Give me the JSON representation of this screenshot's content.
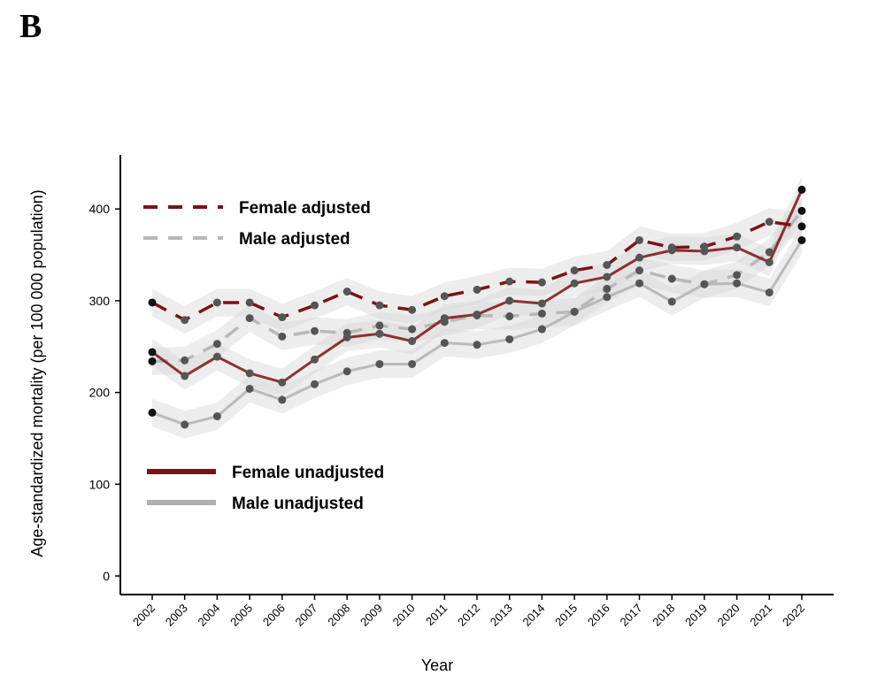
{
  "panel_label": "B",
  "chart_data": {
    "type": "line",
    "title": "",
    "xlabel": "Year",
    "ylabel": "Age-standardized mortality (per 100 000 population)",
    "x": [
      "2002",
      "2003",
      "2004",
      "2005",
      "2006",
      "2007",
      "2008",
      "2009",
      "2010",
      "2011",
      "2012",
      "2013",
      "2014",
      "2015",
      "2016",
      "2017",
      "2018",
      "2019",
      "2020",
      "2021",
      "2022"
    ],
    "ylim": [
      0,
      440
    ],
    "yticks": [
      0,
      100,
      200,
      300,
      400
    ],
    "legend_upper": [
      "Female adjusted",
      "Male adjusted"
    ],
    "legend_lower": [
      "Female unadjusted",
      "Male unadjusted"
    ],
    "series": [
      {
        "name": "Female adjusted",
        "color": "#7b1118",
        "dashed": true,
        "band": true,
        "values": [
          298,
          279,
          298,
          298,
          282,
          295,
          310,
          295,
          290,
          305,
          312,
          321,
          320,
          333,
          339,
          366,
          358,
          359,
          370,
          386,
          381
        ]
      },
      {
        "name": "Male adjusted",
        "color": "#b8b8b8",
        "dashed": true,
        "band": true,
        "values": [
          234,
          235,
          253,
          281,
          261,
          267,
          265,
          273,
          269,
          277,
          284,
          283,
          286,
          288,
          313,
          333,
          324,
          318,
          328,
          353,
          398
        ]
      },
      {
        "name": "Female unadjusted",
        "color": "#7b1118",
        "dashed": false,
        "band": true,
        "values": [
          244,
          218,
          239,
          221,
          211,
          236,
          260,
          264,
          256,
          281,
          285,
          300,
          297,
          319,
          326,
          347,
          355,
          354,
          358,
          342,
          421
        ]
      },
      {
        "name": "Male unadjusted",
        "color": "#b0b0b0",
        "dashed": false,
        "band": true,
        "values": [
          178,
          165,
          174,
          204,
          192,
          209,
          223,
          231,
          231,
          254,
          252,
          258,
          269,
          288,
          304,
          319,
          299,
          318,
          319,
          309,
          366
        ]
      }
    ]
  }
}
